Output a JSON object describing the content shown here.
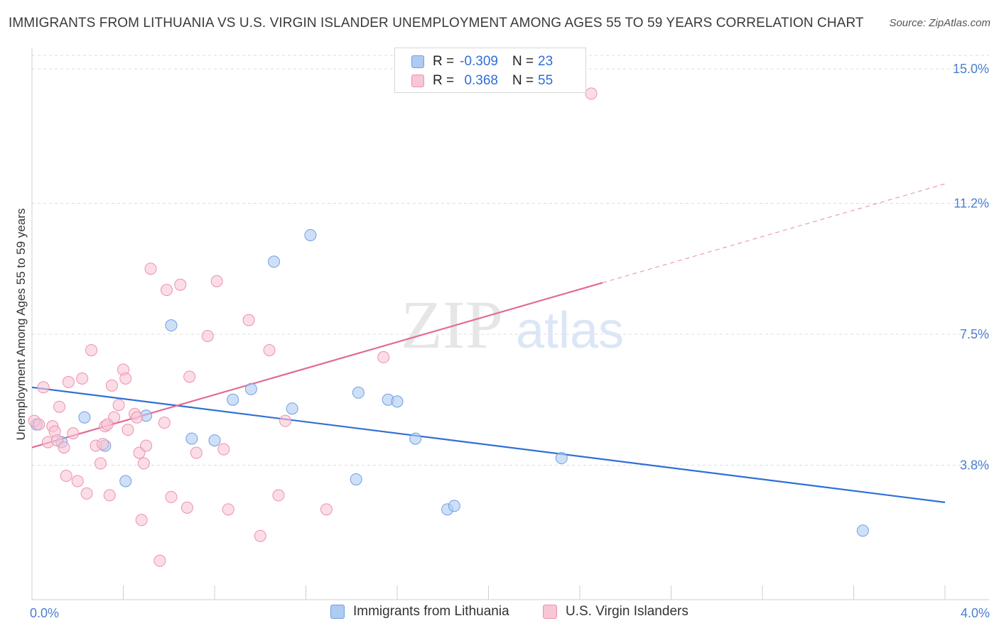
{
  "header": {
    "title": "IMMIGRANTS FROM LITHUANIA VS U.S. VIRGIN ISLANDER UNEMPLOYMENT AMONG AGES 55 TO 59 YEARS CORRELATION CHART",
    "source": "Source: ZipAtlas.com"
  },
  "watermark": {
    "zip": "ZIP",
    "atlas": "atlas"
  },
  "legend": {
    "rows": [
      {
        "r_label": "R =",
        "r_value": "-0.309",
        "n_label": "N =",
        "n_value": "23",
        "color": "#aecbf3",
        "border": "#6f9fe0"
      },
      {
        "r_label": "R =",
        "r_value": "0.368",
        "n_label": "N =",
        "n_value": "55",
        "color": "#f9c6d5",
        "border": "#ee8fae"
      }
    ]
  },
  "bottom_legend": [
    {
      "label": "Immigrants from Lithuania",
      "color": "#aecbf3",
      "border": "#6f9fe0"
    },
    {
      "label": "U.S. Virgin Islanders",
      "color": "#f9c6d5",
      "border": "#ee8fae"
    }
  ],
  "chart_data": {
    "type": "scatter",
    "title": "IMMIGRANTS FROM LITHUANIA VS U.S. VIRGIN ISLANDER UNEMPLOYMENT AMONG AGES 55 TO 59 YEARS CORRELATION CHART",
    "xlabel": "",
    "ylabel": "Unemployment Among Ages 55 to 59 years",
    "xlim": [
      0.0,
      4.0
    ],
    "ylim": [
      0.0,
      15.0
    ],
    "x_tick_labels": [
      "0.0%",
      "4.0%"
    ],
    "y_ticks": [
      {
        "value": 3.8,
        "label": "3.8%"
      },
      {
        "value": 7.5,
        "label": "7.5%"
      },
      {
        "value": 11.2,
        "label": "11.2%"
      },
      {
        "value": 15.0,
        "label": "15.0%"
      }
    ],
    "grid": true,
    "series": [
      {
        "name": "Immigrants from Lithuania",
        "color": "#aecbf3",
        "edge": "#6f9fe0",
        "line_color": "#2f6fd6",
        "trend": {
          "x_start": 0.0,
          "y_start": 6.0,
          "x_end": 4.0,
          "y_end": 2.75,
          "dashed_from": null
        },
        "points": [
          [
            0.02,
            4.95
          ],
          [
            0.13,
            4.45
          ],
          [
            0.23,
            5.15
          ],
          [
            0.32,
            4.35
          ],
          [
            0.41,
            3.35
          ],
          [
            0.5,
            5.2
          ],
          [
            0.61,
            7.75
          ],
          [
            0.7,
            4.55
          ],
          [
            0.8,
            4.5
          ],
          [
            0.88,
            5.65
          ],
          [
            0.96,
            5.95
          ],
          [
            1.06,
            9.55
          ],
          [
            1.14,
            5.4
          ],
          [
            1.22,
            10.3
          ],
          [
            1.43,
            5.85
          ],
          [
            1.42,
            3.4
          ],
          [
            1.56,
            5.65
          ],
          [
            1.6,
            5.6
          ],
          [
            1.68,
            4.55
          ],
          [
            1.82,
            2.55
          ],
          [
            1.85,
            2.65
          ],
          [
            2.32,
            4.0
          ],
          [
            3.64,
            1.95
          ]
        ]
      },
      {
        "name": "U.S. Virgin Islanders",
        "color": "#f9c6d5",
        "edge": "#ee8fae",
        "line_color": "#e26a94",
        "trend": {
          "x_start": 0.0,
          "y_start": 4.3,
          "x_end": 4.0,
          "y_end": 11.75,
          "dashed_from": 2.5
        },
        "points": [
          [
            0.01,
            5.05
          ],
          [
            0.03,
            4.95
          ],
          [
            0.05,
            6.0
          ],
          [
            0.07,
            4.45
          ],
          [
            0.09,
            4.9
          ],
          [
            0.1,
            4.75
          ],
          [
            0.11,
            4.5
          ],
          [
            0.12,
            5.45
          ],
          [
            0.14,
            4.3
          ],
          [
            0.15,
            3.5
          ],
          [
            0.16,
            6.15
          ],
          [
            0.18,
            4.7
          ],
          [
            0.2,
            3.35
          ],
          [
            0.22,
            6.25
          ],
          [
            0.24,
            3.0
          ],
          [
            0.26,
            7.05
          ],
          [
            0.28,
            4.35
          ],
          [
            0.3,
            3.85
          ],
          [
            0.31,
            4.4
          ],
          [
            0.32,
            4.9
          ],
          [
            0.34,
            2.95
          ],
          [
            0.35,
            6.05
          ],
          [
            0.36,
            5.15
          ],
          [
            0.38,
            5.5
          ],
          [
            0.4,
            6.5
          ],
          [
            0.41,
            6.25
          ],
          [
            0.42,
            4.8
          ],
          [
            0.45,
            5.25
          ],
          [
            0.47,
            4.15
          ],
          [
            0.48,
            2.25
          ],
          [
            0.49,
            3.85
          ],
          [
            0.5,
            4.35
          ],
          [
            0.52,
            9.35
          ],
          [
            0.56,
            1.1
          ],
          [
            0.58,
            5.0
          ],
          [
            0.59,
            8.75
          ],
          [
            0.61,
            2.9
          ],
          [
            0.65,
            8.9
          ],
          [
            0.68,
            2.6
          ],
          [
            0.69,
            6.3
          ],
          [
            0.72,
            4.15
          ],
          [
            0.77,
            7.45
          ],
          [
            0.81,
            9.0
          ],
          [
            0.84,
            4.25
          ],
          [
            0.86,
            2.55
          ],
          [
            0.95,
            7.9
          ],
          [
            1.0,
            1.8
          ],
          [
            1.04,
            7.05
          ],
          [
            1.08,
            2.95
          ],
          [
            1.11,
            5.05
          ],
          [
            1.29,
            2.55
          ],
          [
            1.54,
            6.85
          ],
          [
            2.45,
            14.3
          ],
          [
            0.46,
            5.15
          ],
          [
            0.33,
            4.95
          ]
        ]
      }
    ]
  }
}
